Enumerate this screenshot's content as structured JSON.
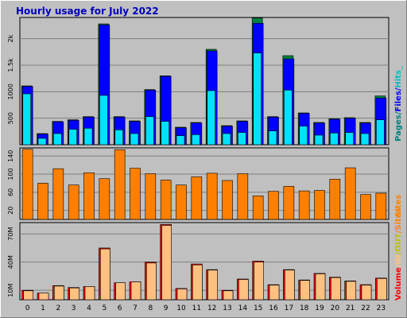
{
  "title": "Hourly usage for July 2022",
  "colors": {
    "background": "#c0c0c0",
    "pages": "#008040",
    "files": "#0000ff",
    "hits": "#00e0ff",
    "sites": "#ff8000",
    "volume": "#ff0000",
    "in": "#ffc080",
    "out": "#008040",
    "legend_pages": "#008080",
    "legend_files": "#0000ff",
    "legend_hits": "#00c0c0",
    "legend_sites": "#ff8000",
    "legend_volume": "#ff0000",
    "legend_in": "#ffc080",
    "legend_out": "#c0c000"
  },
  "chart_data": [
    {
      "type": "bar",
      "name": "hits-files-pages",
      "categories": [
        "0",
        "1",
        "2",
        "3",
        "4",
        "5",
        "6",
        "7",
        "8",
        "9",
        "10",
        "11",
        "12",
        "13",
        "14",
        "15",
        "16",
        "17",
        "18",
        "19",
        "20",
        "21",
        "22",
        "23"
      ],
      "ylim": [
        0,
        2400
      ],
      "yticks": [
        "500",
        "1000",
        "1.5k",
        "2k"
      ],
      "ytick_values": [
        500,
        1000,
        1500,
        2000
      ],
      "legend": [
        "Pages",
        "/",
        "Files",
        "/",
        "Hits_"
      ],
      "series": [
        {
          "name": "Pages",
          "values": [
            1110,
            210,
            440,
            470,
            530,
            2280,
            530,
            450,
            1040,
            1300,
            330,
            420,
            1800,
            360,
            450,
            2390,
            530,
            1680,
            600,
            420,
            490,
            510,
            420,
            920
          ]
        },
        {
          "name": "Files",
          "values": [
            1100,
            200,
            430,
            460,
            520,
            2260,
            520,
            440,
            1030,
            1290,
            320,
            410,
            1770,
            350,
            440,
            2290,
            520,
            1620,
            590,
            410,
            480,
            500,
            410,
            880
          ]
        },
        {
          "name": "Hits",
          "values": [
            960,
            120,
            210,
            290,
            310,
            930,
            280,
            210,
            530,
            440,
            170,
            190,
            1020,
            210,
            230,
            1730,
            260,
            1030,
            350,
            180,
            220,
            230,
            210,
            470
          ]
        }
      ]
    },
    {
      "type": "bar",
      "name": "sites",
      "categories": [
        "0",
        "1",
        "2",
        "3",
        "4",
        "5",
        "6",
        "7",
        "8",
        "9",
        "10",
        "11",
        "12",
        "13",
        "14",
        "15",
        "16",
        "17",
        "18",
        "19",
        "20",
        "21",
        "22",
        "23"
      ],
      "ylim": [
        0,
        158
      ],
      "yticks": [
        "20",
        "60",
        "100",
        "140"
      ],
      "ytick_values": [
        20,
        60,
        100,
        140
      ],
      "legend": [
        "Sites"
      ],
      "series": [
        {
          "name": "Sites",
          "values": [
            155,
            80,
            112,
            76,
            103,
            90,
            154,
            113,
            101,
            87,
            76,
            94,
            102,
            86,
            101,
            52,
            62,
            73,
            63,
            64,
            89,
            114,
            55,
            58
          ]
        }
      ]
    },
    {
      "type": "bar",
      "name": "volume",
      "categories": [
        "0",
        "1",
        "2",
        "3",
        "4",
        "5",
        "6",
        "7",
        "8",
        "9",
        "10",
        "11",
        "12",
        "13",
        "14",
        "15",
        "16",
        "17",
        "18",
        "19",
        "20",
        "21",
        "22",
        "23"
      ],
      "ylim": [
        0,
        82
      ],
      "yticks": [
        "10M",
        "40M",
        "70M"
      ],
      "ytick_values": [
        10,
        40,
        70
      ],
      "legend": [
        "Volume",
        "/",
        "IN",
        "/",
        "OUT",
        "/",
        "Sites"
      ],
      "series": [
        {
          "name": "Volume",
          "values": [
            10,
            7,
            15,
            13,
            14,
            55,
            18,
            19,
            40,
            80,
            12,
            38,
            32,
            10,
            22,
            41,
            16,
            32,
            21,
            28,
            24,
            20,
            16,
            23
          ]
        },
        {
          "name": "IN",
          "values": [
            9.5,
            7,
            14.5,
            12.5,
            14,
            54,
            18,
            19,
            39,
            79,
            11.5,
            37,
            31.5,
            9.5,
            21.5,
            40,
            15.5,
            31.5,
            20.5,
            27.5,
            23.5,
            19.5,
            15.5,
            22.5
          ]
        }
      ]
    }
  ]
}
